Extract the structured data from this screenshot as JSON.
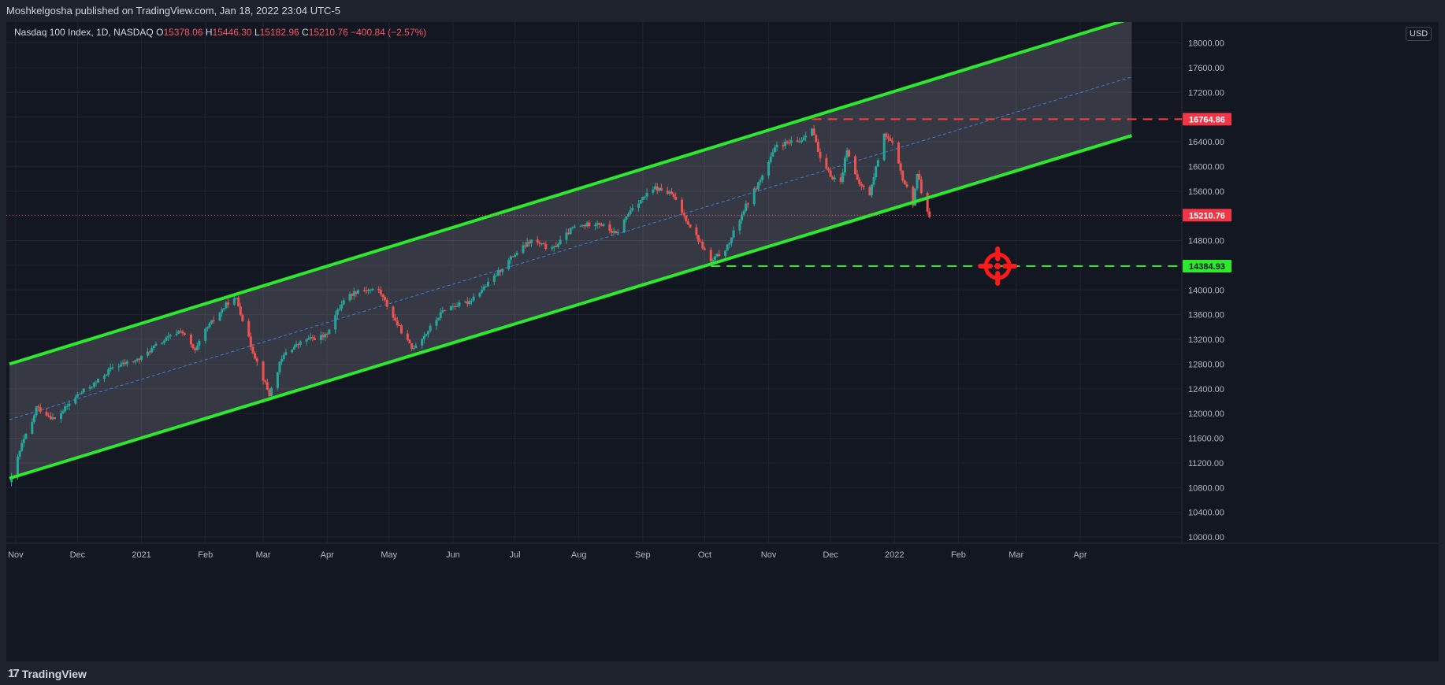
{
  "header": {
    "publisher": "Moshkelgosha published on TradingView.com, Jan 18, 2022 23:04 UTC-5"
  },
  "legend": {
    "symbol": "Nasdaq 100 Index, 1D, NASDAQ",
    "o_label": "O",
    "o_value": "15378.06",
    "h_label": "H",
    "h_value": "15446.30",
    "l_label": "L",
    "l_value": "15182.96",
    "c_label": "C",
    "c_value": "15210.76",
    "change": "−400.84 (−2.57%)"
  },
  "currency_label": "USD",
  "footer": {
    "logo_text": "TradingView",
    "logo_icon": "tradingview-logo-icon"
  },
  "colors": {
    "background": "#131722",
    "up": "#26a69a",
    "down": "#ef5350",
    "channel": "#2ee82e",
    "resistance": "#ff3b3b",
    "support": "#2ee82e",
    "target": "#ff1a1a"
  },
  "chart_data": {
    "type": "candlestick",
    "title": "Nasdaq 100 Index, 1D, NASDAQ",
    "ylim": [
      9800,
      18500
    ],
    "y_ticks": [
      "18000.00",
      "17600.00",
      "17200.00",
      "16800.00",
      "16400.00",
      "16000.00",
      "15600.00",
      "15200.00",
      "14800.00",
      "14400.00",
      "14000.00",
      "13600.00",
      "13200.00",
      "12800.00",
      "12400.00",
      "12000.00",
      "11600.00",
      "11200.00",
      "10800.00",
      "10400.00",
      "10000.00"
    ],
    "x_ticks": [
      "Nov",
      "Dec",
      "2021",
      "Feb",
      "Mar",
      "Apr",
      "May",
      "Jun",
      "Jul",
      "Aug",
      "Sep",
      "Oct",
      "Nov",
      "Dec",
      "2022",
      "Feb",
      "Mar",
      "Apr"
    ],
    "close_path": [
      [
        "2020-10-30",
        10950
      ],
      [
        "2020-11-04",
        11500
      ],
      [
        "2020-11-09",
        11850
      ],
      [
        "2020-11-11",
        12100
      ],
      [
        "2020-11-20",
        11900
      ],
      [
        "2020-12-01",
        12300
      ],
      [
        "2020-12-10",
        12500
      ],
      [
        "2020-12-18",
        12750
      ],
      [
        "2020-12-31",
        12880
      ],
      [
        "2021-01-08",
        13100
      ],
      [
        "2021-01-20",
        13350
      ],
      [
        "2021-01-27",
        13000
      ],
      [
        "2021-02-01",
        13350
      ],
      [
        "2021-02-12",
        13800
      ],
      [
        "2021-02-16",
        13850
      ],
      [
        "2021-02-23",
        13100
      ],
      [
        "2021-03-04",
        12300
      ],
      [
        "2021-03-09",
        12800
      ],
      [
        "2021-03-12",
        13000
      ],
      [
        "2021-03-22",
        13200
      ],
      [
        "2021-03-31",
        13250
      ],
      [
        "2021-04-09",
        13850
      ],
      [
        "2021-04-16",
        14000
      ],
      [
        "2021-04-26",
        14000
      ],
      [
        "2021-05-04",
        13500
      ],
      [
        "2021-05-12",
        13050
      ],
      [
        "2021-05-19",
        13300
      ],
      [
        "2021-05-28",
        13700
      ],
      [
        "2021-06-08",
        13800
      ],
      [
        "2021-06-18",
        14100
      ],
      [
        "2021-06-30",
        14550
      ],
      [
        "2021-07-09",
        14800
      ],
      [
        "2021-07-19",
        14650
      ],
      [
        "2021-07-29",
        15000
      ],
      [
        "2021-08-10",
        15100
      ],
      [
        "2021-08-19",
        14900
      ],
      [
        "2021-08-27",
        15350
      ],
      [
        "2021-09-07",
        15650
      ],
      [
        "2021-09-15",
        15550
      ],
      [
        "2021-09-21",
        15200
      ],
      [
        "2021-09-30",
        14700
      ],
      [
        "2021-10-04",
        14450
      ],
      [
        "2021-10-12",
        14700
      ],
      [
        "2021-10-20",
        15300
      ],
      [
        "2021-10-29",
        15850
      ],
      [
        "2021-11-05",
        16350
      ],
      [
        "2021-11-16",
        16400
      ],
      [
        "2021-11-22",
        16650
      ],
      [
        "2021-11-26",
        16100
      ],
      [
        "2021-12-01",
        15850
      ],
      [
        "2021-12-06",
        15750
      ],
      [
        "2021-12-09",
        16300
      ],
      [
        "2021-12-14",
        15750
      ],
      [
        "2021-12-20",
        15550
      ],
      [
        "2021-12-27",
        16550
      ],
      [
        "2021-12-31",
        16350
      ],
      [
        "2022-01-05",
        15800
      ],
      [
        "2022-01-10",
        15400
      ],
      [
        "2022-01-12",
        15900
      ],
      [
        "2022-01-14",
        15600
      ],
      [
        "2022-01-18",
        15210.76
      ]
    ],
    "channel": {
      "upper": [
        [
          "2020-10-29",
          12800
        ],
        [
          "2022-04-26",
          18400
        ]
      ],
      "middle": [
        [
          "2020-10-29",
          11900
        ],
        [
          "2022-04-26",
          17450
        ]
      ],
      "lower": [
        [
          "2020-10-29",
          10950
        ],
        [
          "2022-04-26",
          16500
        ]
      ]
    },
    "levels": {
      "resistance": {
        "value": "16764.86",
        "from": "2021-11-22"
      },
      "current": {
        "value": "15210.76"
      },
      "support": {
        "value": "14384.93",
        "from": "2021-10-04"
      }
    },
    "target_marker": {
      "date": "2022-02-20",
      "value": 14384.93
    }
  }
}
